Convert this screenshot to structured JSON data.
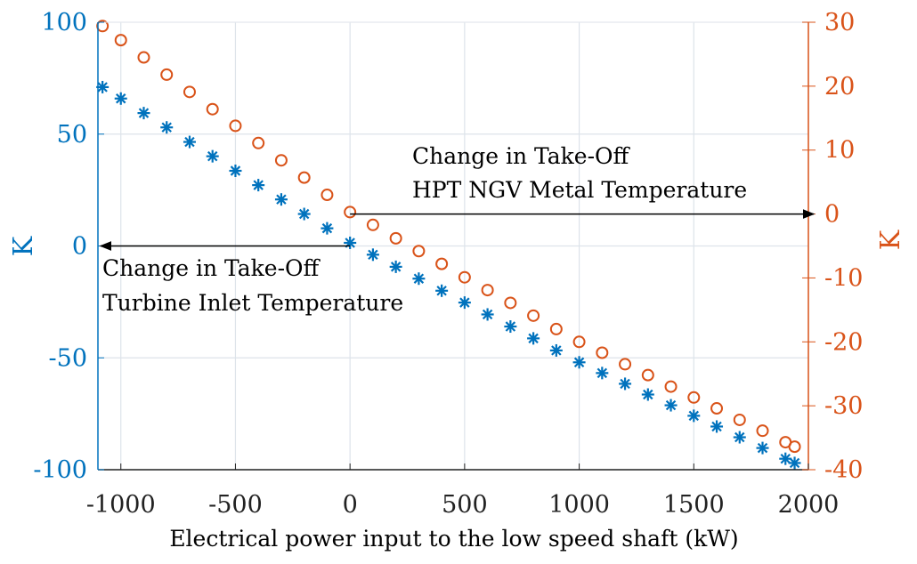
{
  "chart_data": {
    "type": "scatter",
    "xlabel": "Electrical power input to the low speed shaft (kW)",
    "ylabel_left": "K",
    "ylabel_right": "K",
    "xlim": [
      -1100,
      2000
    ],
    "ylim_left": [
      -100,
      100
    ],
    "ylim_right": [
      -40,
      30
    ],
    "xticks": [
      -1000,
      -500,
      0,
      500,
      1000,
      1500,
      2000
    ],
    "yticks_left": [
      -100,
      -50,
      0,
      50,
      100
    ],
    "yticks_right": [
      -40,
      -30,
      -20,
      -10,
      0,
      10,
      20,
      30
    ],
    "grid": true,
    "colors": {
      "left": "#0072BD",
      "right": "#D95319"
    },
    "series": [
      {
        "axis": "left",
        "marker": "asterisk",
        "x": [
          -1080,
          -1000,
          -900,
          -800,
          -700,
          -600,
          -500,
          -400,
          -300,
          -200,
          -100,
          0,
          100,
          200,
          300,
          400,
          500,
          600,
          700,
          800,
          900,
          1000,
          1100,
          1200,
          1300,
          1400,
          1500,
          1600,
          1700,
          1800,
          1900,
          1940
        ],
        "y": [
          71,
          65.9,
          59.4,
          53.0,
          46.5,
          40.1,
          33.6,
          27.2,
          20.8,
          14.3,
          7.9,
          1.4,
          -3.9,
          -9.3,
          -14.6,
          -20.0,
          -25.3,
          -30.6,
          -36.0,
          -41.3,
          -46.7,
          -52,
          -56.8,
          -61.6,
          -66.4,
          -71.2,
          -75.9,
          -80.7,
          -85.5,
          -90.3,
          -95.1,
          -97
        ]
      },
      {
        "axis": "right",
        "marker": "circle",
        "x": [
          -1080,
          -1000,
          -900,
          -800,
          -700,
          -600,
          -500,
          -400,
          -300,
          -200,
          -100,
          0,
          100,
          200,
          300,
          400,
          500,
          600,
          700,
          800,
          900,
          1000,
          1100,
          1200,
          1300,
          1400,
          1500,
          1600,
          1700,
          1800,
          1900,
          1940
        ],
        "y": [
          29.4,
          27.2,
          24.5,
          21.8,
          19.1,
          16.4,
          13.8,
          11.1,
          8.4,
          5.7,
          3.0,
          0.3,
          -1.7,
          -3.8,
          -5.8,
          -7.8,
          -9.9,
          -11.9,
          -13.9,
          -15.9,
          -18.0,
          -20,
          -21.7,
          -23.5,
          -25.2,
          -27.0,
          -28.7,
          -30.4,
          -32.2,
          -33.9,
          -35.7,
          -36.4
        ]
      }
    ],
    "annotations": [
      {
        "lines": [
          "Change in Take-Off",
          "Turbine Inlet Temperature"
        ],
        "arrow": "left",
        "axis": "left",
        "y": 0
      },
      {
        "lines": [
          "Change in Take-Off",
          "HPT NGV Metal Temperature"
        ],
        "arrow": "right",
        "axis": "right",
        "y": 0
      }
    ]
  }
}
